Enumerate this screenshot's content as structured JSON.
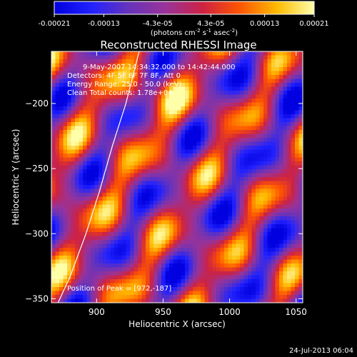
{
  "chart_data": {
    "type": "heatmap",
    "title": "Reconstructed RHESSI Image",
    "xlabel": "Heliocentric X (arcsec)",
    "ylabel": "Heliocentric Y (arcsec)",
    "xlim": [
      866,
      1055
    ],
    "ylim": [
      -353,
      -160
    ],
    "xticks": [
      900,
      950,
      1000,
      1050
    ],
    "yticks": [
      -200,
      -250,
      -300,
      -350
    ],
    "colorbar": {
      "min": -0.00021,
      "max": 0.00021,
      "tick_labels": [
        "-0.00021",
        "-0.00013",
        "-4.3e-05",
        "4.3e-05",
        "0.00013",
        "0.00021"
      ],
      "tick_values": [
        -0.00021,
        -0.00013,
        -4.3e-05,
        4.3e-05,
        0.00013,
        0.00021
      ],
      "unit_label": "(photons cm",
      "unit_exp1": "-2",
      "unit_mid": " s",
      "unit_exp2": "-1",
      "unit_end": " asec",
      "unit_exp3": "-2",
      "unit_close": ")"
    },
    "peak": {
      "x": 972,
      "y": -187
    },
    "limb_curve": [
      [
        871,
        -353
      ],
      [
        880,
        -333
      ],
      [
        892,
        -300
      ],
      [
        902,
        -268
      ],
      [
        912,
        -232
      ],
      [
        922,
        -200
      ],
      [
        927,
        -180
      ],
      [
        932,
        -160
      ]
    ],
    "colormap": "hot-metal with blue negatives",
    "colorbar_stops": [
      "#0000e0",
      "#2222ff",
      "#6633bb",
      "#993399",
      "#cc2244",
      "#ff5500",
      "#ffbb00",
      "#ffffaa"
    ]
  },
  "annotations": {
    "time": "9-May-2007 14:34:32.000 to 14:42:44.000",
    "detectors": "Detectors: 4F 5F 6F 7F 8F, Att 0",
    "energy": "Energy Range: 25.0 - 50.0 (keV)",
    "clean": "Clean     Total counts: 1.78e+04",
    "peak_label": "Position of Peak = [972,-187]"
  },
  "footer": {
    "timestamp": "24-Jul-2013 06:04"
  }
}
